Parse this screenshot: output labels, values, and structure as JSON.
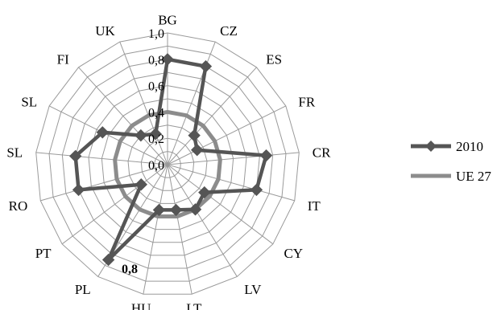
{
  "chart_data": {
    "type": "radar",
    "categories": [
      "BG",
      "CZ",
      "ES",
      "FR",
      "CR",
      "IT",
      "CY",
      "LV",
      "LT",
      "HU",
      "PL",
      "PT",
      "RO",
      "SL",
      "SL",
      "FI",
      "UK"
    ],
    "rlim": [
      0,
      1.0
    ],
    "ticks": [
      "0,0",
      "0,2",
      "0,4",
      "0,6",
      "0,8",
      "1,0"
    ],
    "tick_values": [
      0,
      0.2,
      0.4,
      0.6,
      0.8,
      1.0
    ],
    "grid": true,
    "legend": "right",
    "annotation": "0,8",
    "series": [
      {
        "name": "2010",
        "values": [
          0.8,
          0.8,
          0.3,
          0.25,
          0.75,
          0.7,
          0.35,
          0.4,
          0.35,
          0.35,
          0.85,
          0.25,
          0.7,
          0.7,
          0.55,
          0.3,
          0.25
        ],
        "color": "#555555",
        "marker": "diamond"
      },
      {
        "name": "UE 27",
        "values": [
          0.4,
          0.4,
          0.4,
          0.4,
          0.4,
          0.4,
          0.4,
          0.4,
          0.4,
          0.4,
          0.4,
          0.4,
          0.4,
          0.4,
          0.4,
          0.4,
          0.4
        ],
        "color": "#8c8c8c",
        "marker": "none"
      }
    ]
  }
}
